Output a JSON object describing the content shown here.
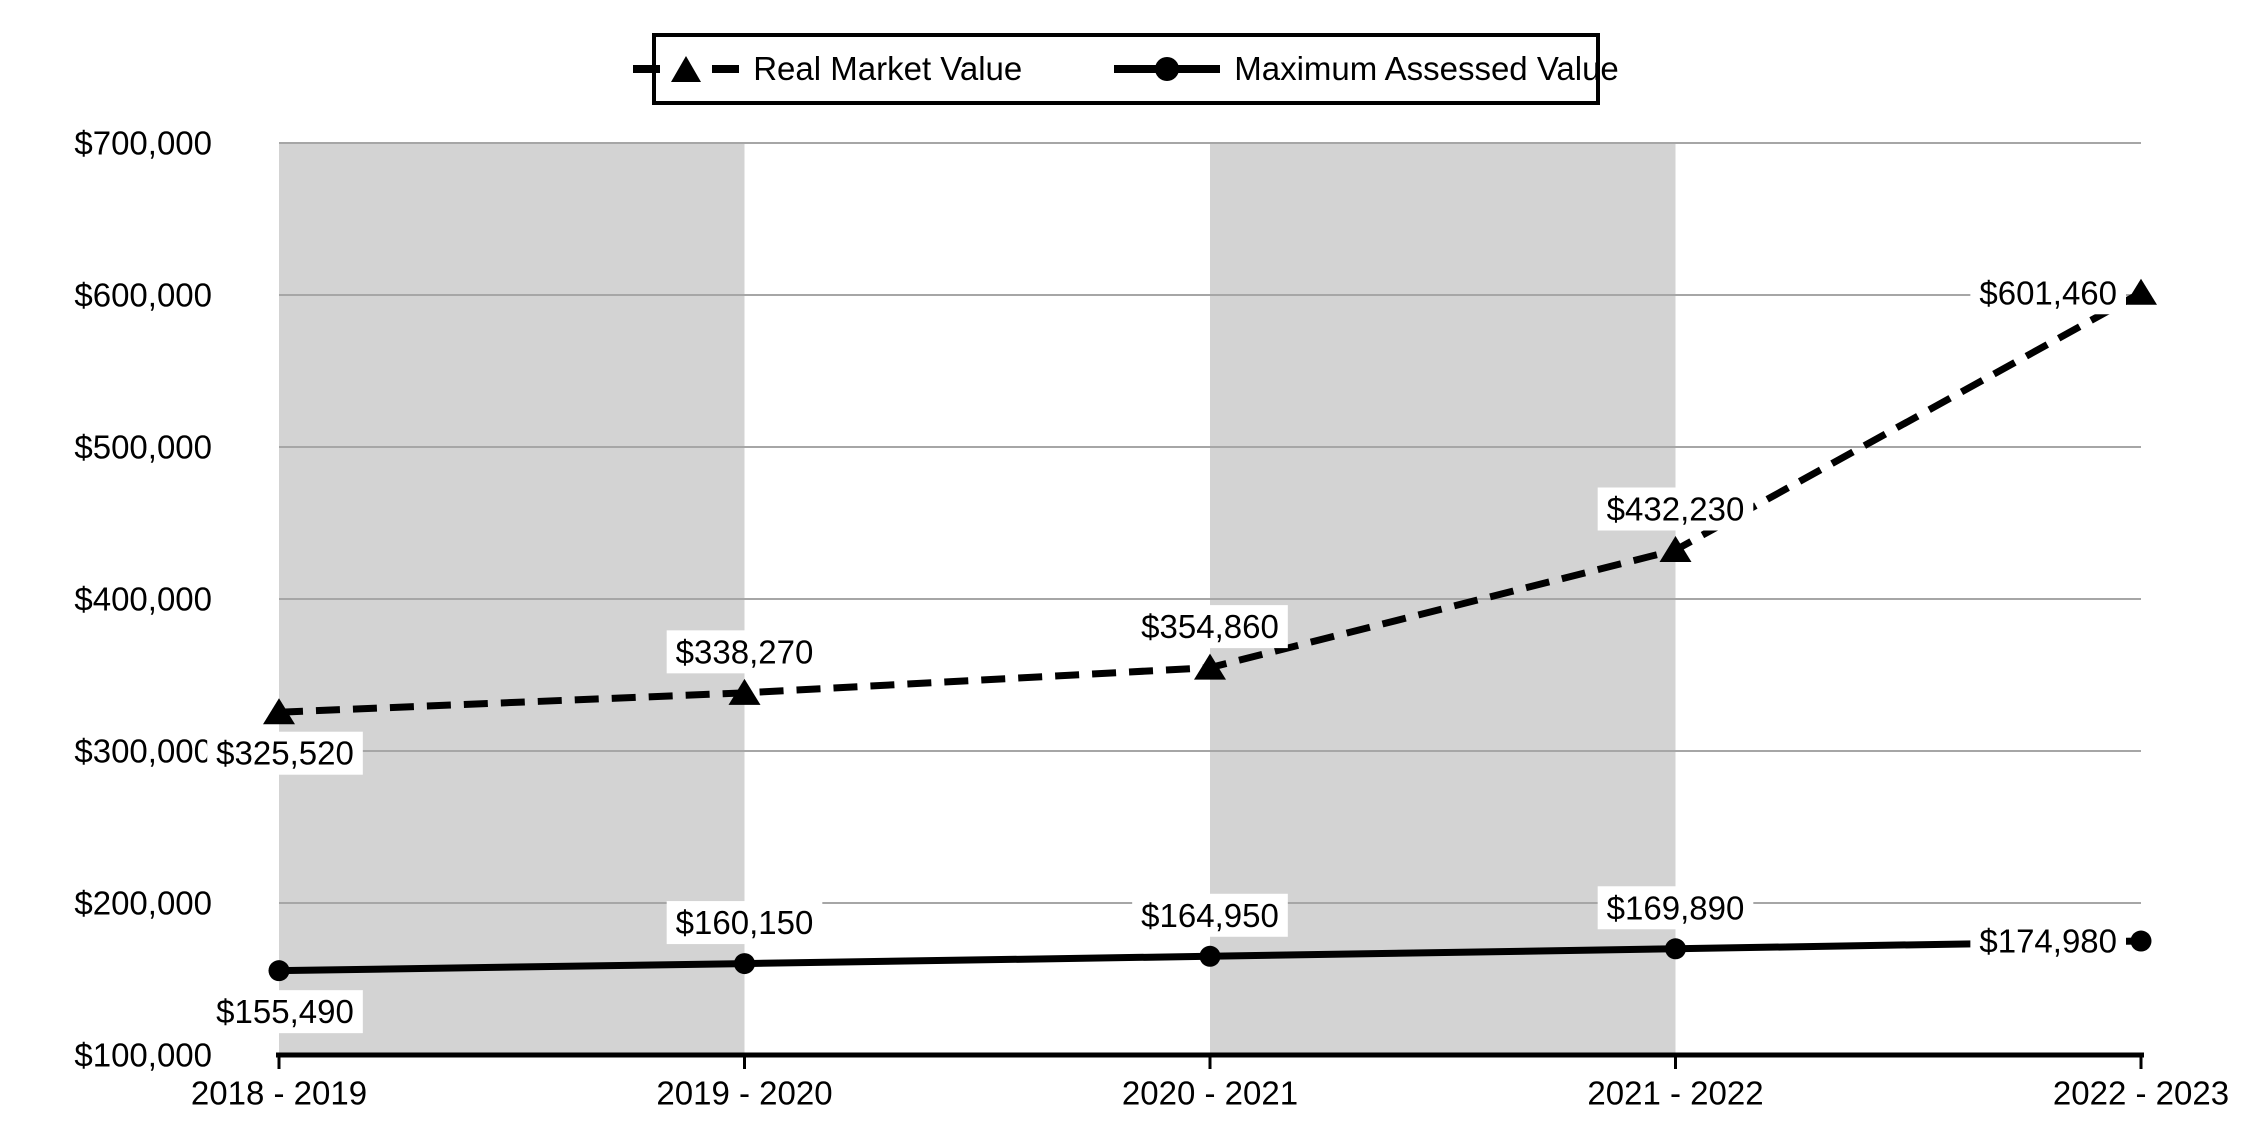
{
  "chart_data": {
    "type": "line",
    "title": "",
    "x_categories": [
      "2018 - 2019",
      "2019 - 2020",
      "2020 - 2021",
      "2021 - 2022",
      "2022 - 2023"
    ],
    "y_tick_labels": [
      "$100,000",
      "$200,000",
      "$300,000",
      "$400,000",
      "$500,000",
      "$600,000",
      "$700,000"
    ],
    "y_tick_values": [
      100000,
      200000,
      300000,
      400000,
      500000,
      600000,
      700000
    ],
    "ylim": [
      100000,
      700000
    ],
    "grid": "horizontal",
    "legend_position": "top",
    "plot_bands": {
      "between_category_indexes": [
        [
          0,
          1
        ],
        [
          2,
          3
        ]
      ],
      "color": "#d3d3d3"
    },
    "series": [
      {
        "name": "Real Market Value",
        "style": "dashed",
        "marker": "triangle",
        "color": "#000000",
        "values": [
          325520,
          338270,
          354860,
          432230,
          601460
        ],
        "labels": [
          "$325,520",
          "$338,270",
          "$354,860",
          "$432,230",
          "$601,460"
        ],
        "label_positions": [
          "below",
          "above",
          "above",
          "above",
          "left"
        ]
      },
      {
        "name": "Maximum Assessed Value",
        "style": "solid",
        "marker": "circle",
        "color": "#000000",
        "values": [
          155490,
          160150,
          164950,
          169890,
          174980
        ],
        "labels": [
          "$155,490",
          "$160,150",
          "$164,950",
          "$169,890",
          "$174,980"
        ],
        "label_positions": [
          "below",
          "above",
          "above",
          "above",
          "left"
        ]
      }
    ]
  },
  "colors": {
    "band": "#d3d3d3",
    "gridline": "#a6a6a6",
    "axis": "#000000",
    "label_background": "#ffffff",
    "text": "#000000"
  }
}
